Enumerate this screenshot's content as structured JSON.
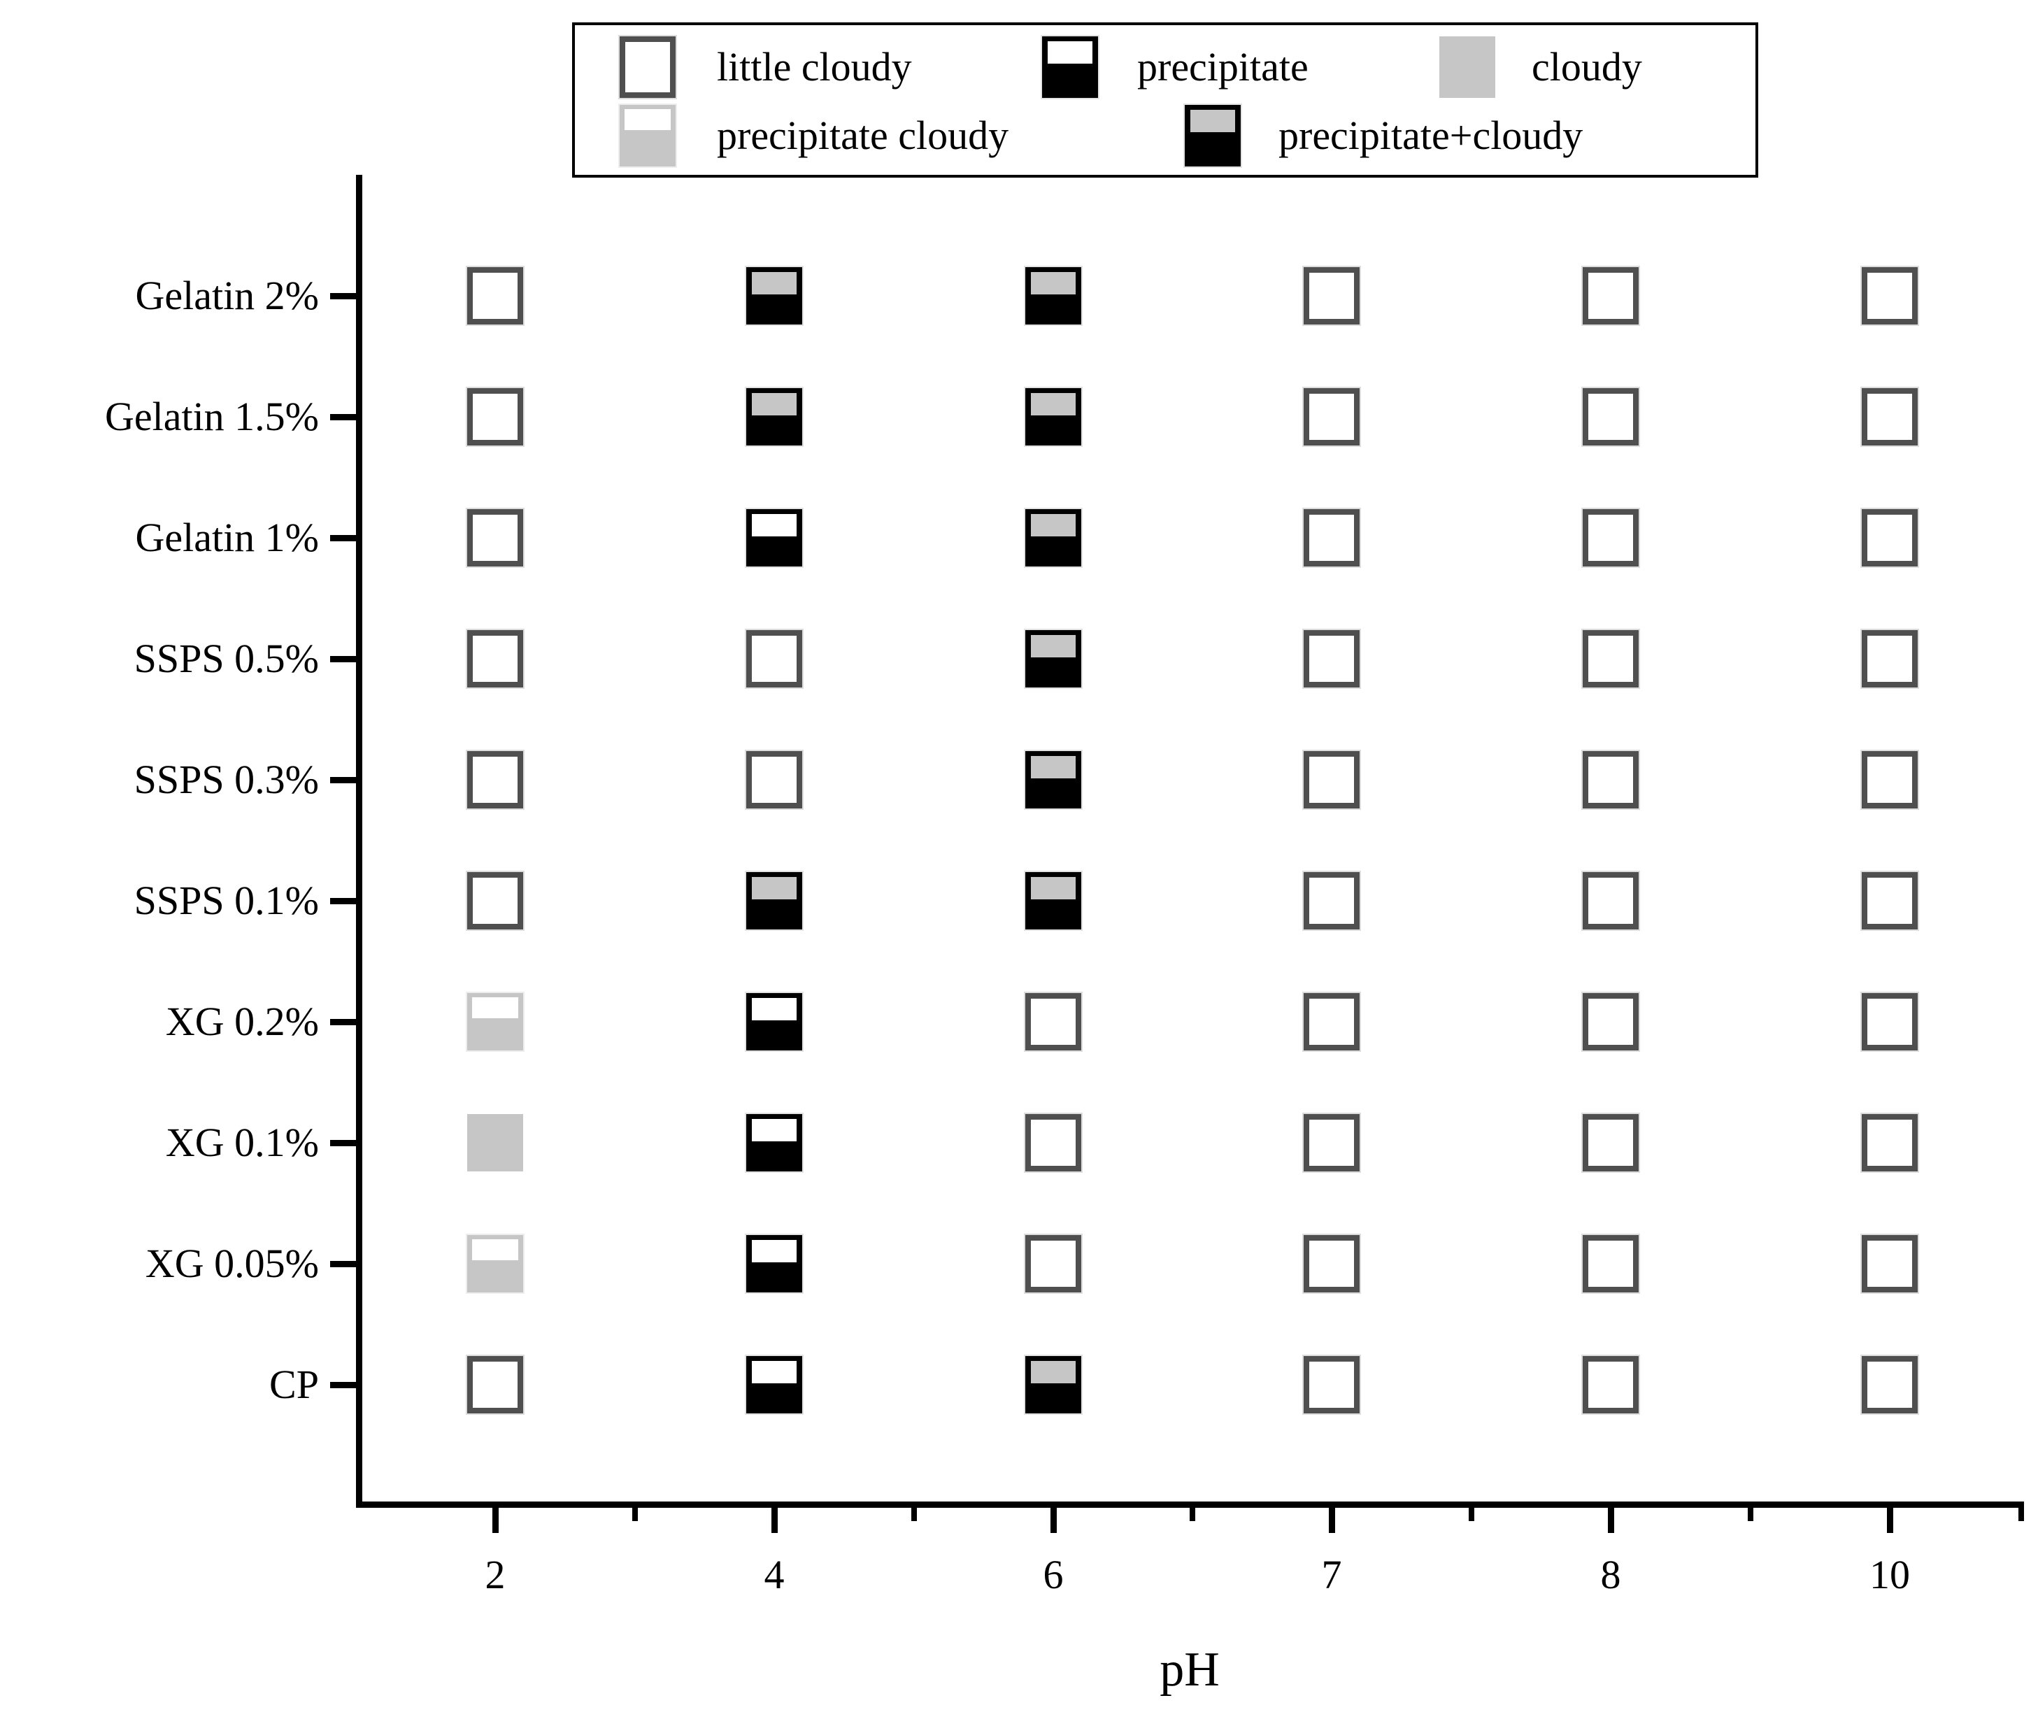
{
  "chart_data": {
    "type": "scatter",
    "title": "",
    "xlabel": "pH",
    "ylabel": "",
    "x_tick_labels": [
      "2",
      "4",
      "6",
      "7",
      "8",
      "10"
    ],
    "y_categories": [
      "Gelatin 2%",
      "Gelatin 1.5%",
      "Gelatin 1%",
      "SSPS 0.5%",
      "SSPS 0.3%",
      "SSPS 0.1%",
      "XG 0.2%",
      "XG 0.1%",
      "XG 0.05%",
      "CP"
    ],
    "legend_position": "top",
    "grid_lines": "off",
    "legend_entries": [
      {
        "label": "little cloudy",
        "state": "little_cloudy"
      },
      {
        "label": "precipitate",
        "state": "precipitate"
      },
      {
        "label": "cloudy",
        "state": "cloudy"
      },
      {
        "label": "precipitate cloudy",
        "state": "precipitate_cloudy"
      },
      {
        "label": "precipitate+cloudy",
        "state": "precipitate_plus_cloudy"
      }
    ],
    "grid": [
      [
        "little_cloudy",
        "precipitate_plus_cloudy",
        "precipitate_plus_cloudy",
        "little_cloudy",
        "little_cloudy",
        "little_cloudy"
      ],
      [
        "little_cloudy",
        "precipitate_plus_cloudy",
        "precipitate_plus_cloudy",
        "little_cloudy",
        "little_cloudy",
        "little_cloudy"
      ],
      [
        "little_cloudy",
        "precipitate",
        "precipitate_plus_cloudy",
        "little_cloudy",
        "little_cloudy",
        "little_cloudy"
      ],
      [
        "little_cloudy",
        "little_cloudy",
        "precipitate_plus_cloudy",
        "little_cloudy",
        "little_cloudy",
        "little_cloudy"
      ],
      [
        "little_cloudy",
        "little_cloudy",
        "precipitate_plus_cloudy",
        "little_cloudy",
        "little_cloudy",
        "little_cloudy"
      ],
      [
        "little_cloudy",
        "precipitate_plus_cloudy",
        "precipitate_plus_cloudy",
        "little_cloudy",
        "little_cloudy",
        "little_cloudy"
      ],
      [
        "precipitate_cloudy",
        "precipitate",
        "little_cloudy",
        "little_cloudy",
        "little_cloudy",
        "little_cloudy"
      ],
      [
        "cloudy",
        "precipitate",
        "little_cloudy",
        "little_cloudy",
        "little_cloudy",
        "little_cloudy"
      ],
      [
        "precipitate_cloudy",
        "precipitate",
        "little_cloudy",
        "little_cloudy",
        "little_cloudy",
        "little_cloudy"
      ],
      [
        "little_cloudy",
        "precipitate",
        "precipitate_plus_cloudy",
        "little_cloudy",
        "little_cloudy",
        "little_cloudy"
      ]
    ],
    "colors": {
      "background": "#ffffff",
      "cloudy_gray": "#c6c6c6",
      "little_cloudy_border": "#4f4f4f",
      "precipitate_black": "#000000"
    }
  }
}
